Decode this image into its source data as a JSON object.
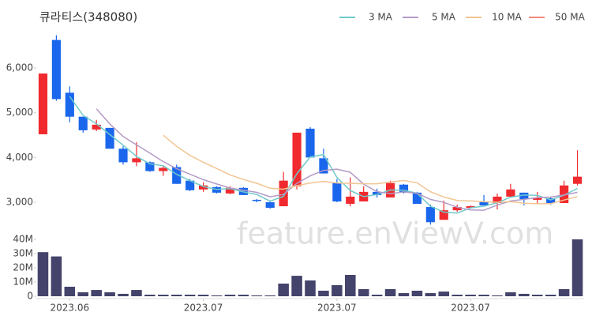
{
  "chart_data": {
    "type": "candlestick",
    "title": "큐라티스(348080)",
    "watermark": "feature.enViewV.com",
    "categories": [
      null,
      null,
      "2023.06",
      null,
      null,
      null,
      null,
      null,
      null,
      null,
      null,
      null,
      "2023.07",
      null,
      null,
      null,
      null,
      null,
      null,
      null,
      null,
      null,
      "2023.07",
      null,
      null,
      null,
      null,
      null,
      null,
      null,
      null,
      null,
      "2023.07",
      null,
      null,
      null,
      null,
      null,
      null,
      null,
      null
    ],
    "open": [
      4518,
      6625,
      5446,
      4911,
      4625,
      4661,
      4196,
      3893,
      3893,
      3696,
      3786,
      3482,
      3286,
      3339,
      3196,
      3321,
      3054,
      3000,
      2911,
      3357,
      4643,
      3982,
      3429,
      2964,
      3018,
      3232,
      3107,
      3393,
      3214,
      2893,
      2607,
      2821,
      2875,
      3000,
      2982,
      3125,
      3214,
      3054,
      3089,
      2982,
      3411
    ],
    "high": [
      5875,
      6732,
      5589,
      4911,
      4839,
      4661,
      4250,
      4339,
      3911,
      3804,
      3839,
      3518,
      3446,
      3357,
      3357,
      3339,
      3071,
      3018,
      3679,
      4554,
      4679,
      4196,
      3518,
      3554,
      3357,
      3304,
      3482,
      3411,
      3232,
      2946,
      3036,
      2946,
      2929,
      3161,
      3196,
      3411,
      3214,
      3232,
      3125,
      3482,
      4161
    ],
    "low": [
      4518,
      5268,
      4786,
      4554,
      4589,
      4196,
      3839,
      3804,
      3679,
      3589,
      3411,
      3250,
      3232,
      3196,
      3179,
      3161,
      3000,
      2857,
      2911,
      3286,
      4000,
      3643,
      3000,
      2911,
      3018,
      3107,
      3107,
      3196,
      2964,
      2500,
      2607,
      2786,
      2857,
      2929,
      2839,
      3125,
      2929,
      2964,
      2946,
      2982,
      3375
    ],
    "close": [
      5875,
      5304,
      4911,
      4607,
      4732,
      4196,
      3893,
      3982,
      3696,
      3768,
      3411,
      3268,
      3375,
      3214,
      3321,
      3161,
      3036,
      2875,
      3482,
      4554,
      4000,
      3643,
      3018,
      3125,
      3232,
      3161,
      3429,
      3214,
      2964,
      2554,
      2821,
      2893,
      2911,
      2929,
      3125,
      3286,
      3071,
      3107,
      2982,
      3375,
      3571
    ],
    "volume": [
      31000000,
      28000000,
      6700000,
      2800000,
      4400000,
      2800000,
      1700000,
      4400000,
      1100000,
      1100000,
      1100000,
      1100000,
      1100000,
      600000,
      1100000,
      1100000,
      600000,
      600000,
      8900000,
      14400000,
      11100000,
      3900000,
      7800000,
      15000000,
      5000000,
      1100000,
      5000000,
      2200000,
      3900000,
      2200000,
      3300000,
      1100000,
      1100000,
      1100000,
      600000,
      2800000,
      1700000,
      1100000,
      1100000,
      5000000,
      40000000
    ],
    "up_color": "#f02a2e",
    "down_color": "#1a66ec",
    "volume_color": "#43436b",
    "ylim": [
      2400,
      6900
    ],
    "yticks": [
      {
        "value": 3000,
        "label": "3,000"
      },
      {
        "value": 4000,
        "label": "4,000"
      },
      {
        "value": 5000,
        "label": "5,000"
      },
      {
        "value": 6000,
        "label": "6,000"
      }
    ],
    "volume_ylim": [
      0,
      40000000
    ],
    "volume_yticks": [
      0,
      {
        "value": 10000000,
        "label": "10M"
      },
      {
        "value": 20000000,
        "label": "20M"
      },
      {
        "value": 30000000,
        "label": "30M"
      },
      {
        "value": 40000000,
        "label": "40M"
      }
    ],
    "series": [
      {
        "name": "3 MA",
        "color": "#6fcaca",
        "values": [
          null,
          null,
          5363,
          4941,
          4750,
          4512,
          4274,
          4024,
          3857,
          3815,
          3625,
          3482,
          3351,
          3286,
          3303,
          3232,
          3173,
          3024,
          3131,
          3637,
          4012,
          4066,
          3554,
          3262,
          3125,
          3173,
          3274,
          3268,
          3202,
          2911,
          2780,
          2756,
          2875,
          2911,
          2988,
          3113,
          3161,
          3155,
          3053,
          3155,
          3309
        ]
      },
      {
        "name": "5 MA",
        "color": "#b39bc7",
        "values": [
          null,
          null,
          null,
          null,
          5086,
          4750,
          4468,
          4282,
          4100,
          3907,
          3750,
          3625,
          3504,
          3407,
          3318,
          3268,
          3221,
          3121,
          3175,
          3422,
          3589,
          3711,
          3739,
          3668,
          3404,
          3236,
          3193,
          3232,
          3200,
          3064,
          2996,
          2889,
          2829,
          2822,
          2936,
          3029,
          3064,
          3104,
          3114,
          3164,
          3221
        ]
      },
      {
        "name": "10 MA",
        "color": "#f1c592",
        "values": [
          null,
          null,
          null,
          null,
          null,
          null,
          null,
          null,
          null,
          4496,
          4250,
          4046,
          3893,
          3754,
          3612,
          3509,
          3423,
          3313,
          3291,
          3370,
          3429,
          3466,
          3430,
          3422,
          3413,
          3413,
          3452,
          3486,
          3434,
          3234,
          3116,
          3041,
          3030,
          3011,
          3000,
          3013,
          2977,
          2966,
          2968,
          3050,
          3125
        ]
      },
      {
        "name": "50 MA",
        "color": "#f28b7c",
        "values": [
          null,
          null,
          null,
          null,
          null,
          null,
          null,
          null,
          null,
          null,
          null,
          null,
          null,
          null,
          null,
          null,
          null,
          null,
          null,
          null,
          null,
          null,
          null,
          null,
          null,
          null,
          null,
          null,
          null,
          null,
          null,
          null,
          null,
          null,
          null,
          null,
          null,
          null,
          null,
          null,
          null
        ]
      }
    ]
  }
}
